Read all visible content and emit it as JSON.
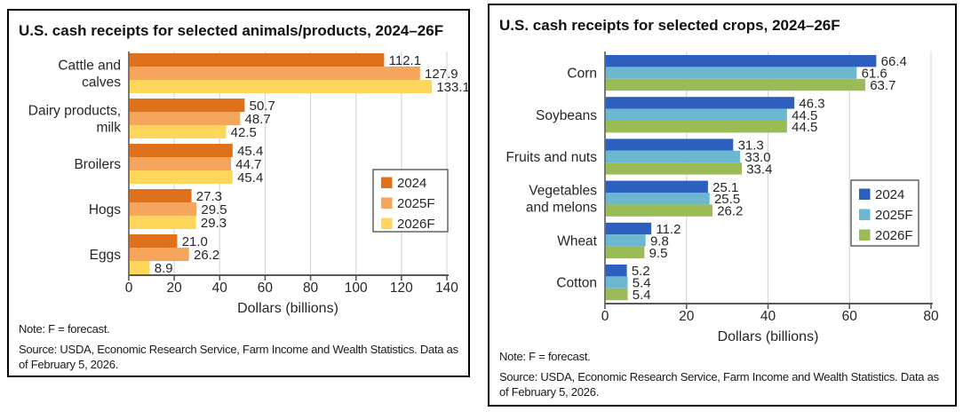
{
  "chart_data": [
    {
      "type": "bar",
      "orientation": "horizontal",
      "title": "U.S. cash receipts for selected animals/products, 2024–26F",
      "xlabel": "Dollars (billions)",
      "note": "Note: F = forecast.",
      "source": "Source: USDA, Economic Research Service, Farm Income and Wealth Statistics. Data as of February 5, 2026.",
      "categories": [
        "Cattle and\ncalves",
        "Dairy products,\nmilk",
        "Broilers",
        "Hogs",
        "Eggs"
      ],
      "series": [
        {
          "name": "2024",
          "color": "#E0711C",
          "values": [
            112.1,
            50.7,
            45.4,
            27.3,
            21.0
          ]
        },
        {
          "name": "2025F",
          "color": "#F5A55C",
          "values": [
            127.9,
            48.7,
            44.7,
            29.5,
            26.2
          ]
        },
        {
          "name": "2026F",
          "color": "#FFD65C",
          "values": [
            133.1,
            42.5,
            45.4,
            29.3,
            8.9
          ]
        }
      ],
      "xlim": [
        0,
        140
      ],
      "xticks": [
        0,
        20,
        40,
        60,
        80,
        100,
        120,
        140
      ],
      "grid": true,
      "value_labels": true,
      "legend_position": "middle-right",
      "colors": {
        "gridline": "#d9d9d9",
        "axis": "#595959",
        "text": "#262626"
      }
    },
    {
      "type": "bar",
      "orientation": "horizontal",
      "title": "U.S. cash receipts for selected crops, 2024–26F",
      "xlabel": "Dollars (billions)",
      "note": "Note: F = forecast.",
      "source": "Source: USDA, Economic Research Service, Farm Income and Wealth Statistics. Data as of February 5, 2026.",
      "categories": [
        "Corn",
        "Soybeans",
        "Fruits and nuts",
        "Vegetables\nand melons",
        "Wheat",
        "Cotton"
      ],
      "series": [
        {
          "name": "2024",
          "color": "#2D5FBE",
          "values": [
            66.4,
            46.3,
            31.3,
            25.1,
            11.2,
            5.2
          ]
        },
        {
          "name": "2025F",
          "color": "#6CB8D0",
          "values": [
            61.6,
            44.5,
            33.0,
            25.5,
            9.8,
            5.4
          ]
        },
        {
          "name": "2026F",
          "color": "#9ABB57",
          "values": [
            63.7,
            44.5,
            33.4,
            26.2,
            9.5,
            5.4
          ]
        }
      ],
      "xlim": [
        0,
        80
      ],
      "xticks": [
        0,
        20,
        40,
        60,
        80
      ],
      "grid": true,
      "value_labels": true,
      "legend_position": "middle-right",
      "colors": {
        "gridline": "#d9d9d9",
        "axis": "#595959",
        "text": "#262626"
      }
    }
  ]
}
